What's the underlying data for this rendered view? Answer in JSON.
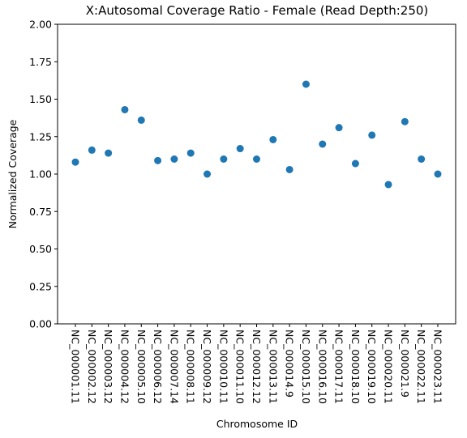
{
  "chart_data": {
    "type": "scatter",
    "title": "X:Autosomal Coverage Ratio - Female (Read Depth:250)",
    "xlabel": "Chromosome ID",
    "ylabel": "Normalized Coverage",
    "ylim": [
      0,
      2.0
    ],
    "yticks": [
      "0.00",
      "0.25",
      "0.50",
      "0.75",
      "1.00",
      "1.25",
      "1.50",
      "1.75",
      "2.00"
    ],
    "grid": false,
    "legend": "none",
    "marker_color": "#1f77b4",
    "categories": [
      "NC_000001.11",
      "NC_000002.12",
      "NC_000003.12",
      "NC_000004.12",
      "NC_000005.10",
      "NC_000006.12",
      "NC_000007.14",
      "NC_000008.11",
      "NC_000009.12",
      "NC_000010.11",
      "NC_000011.10",
      "NC_000012.12",
      "NC_000013.11",
      "NC_000014.9",
      "NC_000015.10",
      "NC_000016.10",
      "NC_000017.11",
      "NC_000018.10",
      "NC_000019.10",
      "NC_000020.11",
      "NC_000021.9",
      "NC_000022.11",
      "NC_000023.11"
    ],
    "values": [
      1.08,
      1.16,
      1.14,
      1.43,
      1.36,
      1.09,
      1.1,
      1.14,
      1.0,
      1.1,
      1.17,
      1.1,
      1.23,
      1.03,
      1.6,
      1.2,
      1.31,
      1.07,
      1.26,
      0.93,
      1.35,
      1.1,
      1.0
    ]
  }
}
